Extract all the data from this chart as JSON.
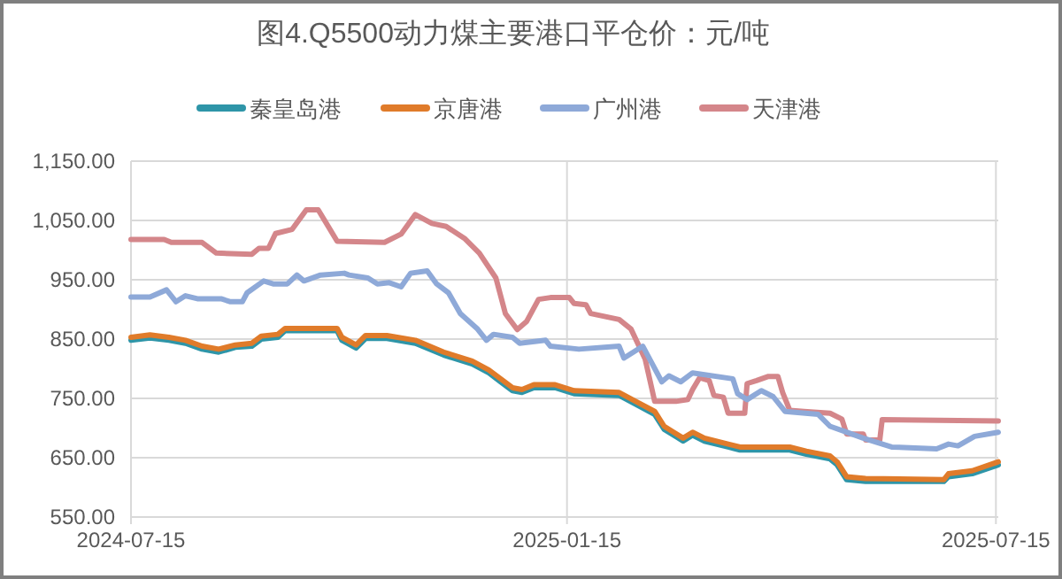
{
  "chart_data": {
    "type": "line",
    "title": "图4.Q5500动力煤主要港口平仓价：元/吨",
    "legend": "top",
    "grid": true,
    "line_style": "solid",
    "xlim": [
      "2024-07-15",
      "2025-07-16"
    ],
    "xticks": [
      "2024-07-15",
      "2025-01-15",
      "2025-07-15"
    ],
    "ylim": [
      550,
      1150
    ],
    "yticks": [
      {
        "value": 550,
        "label": "550.00"
      },
      {
        "value": 650,
        "label": "650.00"
      },
      {
        "value": 750,
        "label": "750.00"
      },
      {
        "value": 850,
        "label": "850.00"
      },
      {
        "value": 950,
        "label": "950.00"
      },
      {
        "value": 1050,
        "label": "1,050.00"
      },
      {
        "value": 1150,
        "label": "1,150.00"
      }
    ],
    "series": [
      {
        "name": "秦皇岛港",
        "color": "#2e95a8",
        "x": [
          "2024-07-15",
          "2024-07-23",
          "2024-07-31",
          "2024-08-07",
          "2024-08-14",
          "2024-08-21",
          "2024-08-28",
          "2024-09-04",
          "2024-09-08",
          "2024-09-15",
          "2024-09-18",
          "2024-10-10",
          "2024-10-12",
          "2024-10-18",
          "2024-10-22",
          "2024-10-31",
          "2024-11-12",
          "2024-11-24",
          "2024-12-06",
          "2024-12-13",
          "2024-12-18",
          "2024-12-23",
          "2024-12-27",
          "2025-01-01",
          "2025-01-10",
          "2025-01-18",
          "2025-02-06",
          "2025-02-13",
          "2025-02-21",
          "2025-02-25",
          "2025-03-05",
          "2025-03-09",
          "2025-03-14",
          "2025-03-24",
          "2025-03-29",
          "2025-04-19",
          "2025-04-26",
          "2025-05-06",
          "2025-05-09",
          "2025-05-13",
          "2025-05-21",
          "2025-06-23",
          "2025-06-25",
          "2025-07-05",
          "2025-07-16"
        ],
        "values": [
          848,
          852,
          848,
          843,
          833,
          828,
          836,
          838,
          850,
          853,
          864,
          864,
          848,
          835,
          851,
          851,
          843,
          823,
          808,
          793,
          778,
          763,
          760,
          768,
          768,
          758,
          755,
          740,
          723,
          698,
          678,
          688,
          678,
          668,
          663,
          663,
          656,
          648,
          638,
          613,
          610,
          610,
          618,
          623,
          638
        ]
      },
      {
        "name": "京唐港",
        "color": "#e07b2a",
        "x": [
          "2024-07-15",
          "2024-07-23",
          "2024-07-31",
          "2024-08-07",
          "2024-08-14",
          "2024-08-21",
          "2024-08-28",
          "2024-09-04",
          "2024-09-08",
          "2024-09-15",
          "2024-09-18",
          "2024-10-10",
          "2024-10-12",
          "2024-10-18",
          "2024-10-22",
          "2024-10-31",
          "2024-11-12",
          "2024-11-24",
          "2024-12-06",
          "2024-12-13",
          "2024-12-18",
          "2024-12-23",
          "2024-12-27",
          "2025-01-01",
          "2025-01-10",
          "2025-01-18",
          "2025-02-06",
          "2025-02-13",
          "2025-02-21",
          "2025-02-25",
          "2025-03-05",
          "2025-03-09",
          "2025-03-14",
          "2025-03-24",
          "2025-03-29",
          "2025-04-19",
          "2025-04-26",
          "2025-05-06",
          "2025-05-09",
          "2025-05-13",
          "2025-05-21",
          "2025-06-23",
          "2025-06-25",
          "2025-07-05",
          "2025-07-16"
        ],
        "values": [
          853,
          857,
          853,
          848,
          838,
          833,
          840,
          843,
          855,
          858,
          868,
          868,
          853,
          840,
          856,
          856,
          848,
          828,
          813,
          798,
          783,
          768,
          765,
          773,
          773,
          763,
          760,
          745,
          728,
          703,
          683,
          693,
          683,
          673,
          668,
          668,
          661,
          653,
          643,
          618,
          615,
          613,
          623,
          628,
          643
        ]
      },
      {
        "name": "广州港",
        "color": "#8ea9d8",
        "x": [
          "2024-07-15",
          "2024-07-23",
          "2024-07-30",
          "2024-08-03",
          "2024-08-07",
          "2024-08-12",
          "2024-08-22",
          "2024-08-26",
          "2024-08-31",
          "2024-09-02",
          "2024-09-09",
          "2024-09-13",
          "2024-09-19",
          "2024-09-23",
          "2024-09-26",
          "2024-10-03",
          "2024-10-13",
          "2024-10-15",
          "2024-10-23",
          "2024-10-27",
          "2024-11-01",
          "2024-11-06",
          "2024-11-10",
          "2024-11-17",
          "2024-11-21",
          "2024-11-26",
          "2024-12-01",
          "2024-12-08",
          "2024-12-12",
          "2024-12-15",
          "2024-12-23",
          "2024-12-26",
          "2025-01-06",
          "2025-01-08",
          "2025-01-20",
          "2025-02-06",
          "2025-02-08",
          "2025-02-16",
          "2025-02-20",
          "2025-02-24",
          "2025-02-27",
          "2025-03-04",
          "2025-03-09",
          "2025-03-26",
          "2025-03-28",
          "2025-04-01",
          "2025-04-07",
          "2025-04-12",
          "2025-04-17",
          "2025-05-01",
          "2025-05-06",
          "2025-05-13",
          "2025-05-20",
          "2025-06-01",
          "2025-06-20",
          "2025-06-25",
          "2025-06-29",
          "2025-07-06",
          "2025-07-16"
        ],
        "values": [
          921,
          921,
          933,
          913,
          923,
          918,
          918,
          913,
          913,
          928,
          948,
          943,
          943,
          958,
          948,
          958,
          961,
          958,
          953,
          943,
          945,
          938,
          961,
          965,
          943,
          928,
          893,
          868,
          848,
          858,
          853,
          843,
          848,
          838,
          833,
          838,
          818,
          838,
          808,
          778,
          788,
          778,
          793,
          783,
          758,
          748,
          763,
          753,
          728,
          723,
          703,
          693,
          683,
          668,
          665,
          673,
          670,
          686,
          693
        ]
      },
      {
        "name": "天津港",
        "color": "#d4868a",
        "x": [
          "2024-07-15",
          "2024-07-29",
          "2024-08-01",
          "2024-08-14",
          "2024-08-20",
          "2024-09-04",
          "2024-09-07",
          "2024-09-11",
          "2024-09-14",
          "2024-09-21",
          "2024-09-27",
          "2024-10-02",
          "2024-10-10",
          "2024-10-30",
          "2024-11-06",
          "2024-11-12",
          "2024-11-19",
          "2024-11-25",
          "2024-12-03",
          "2024-12-09",
          "2024-12-16",
          "2024-12-20",
          "2024-12-25",
          "2024-12-29",
          "2025-01-03",
          "2025-01-08",
          "2025-01-16",
          "2025-01-18",
          "2025-01-23",
          "2025-01-25",
          "2025-02-06",
          "2025-02-11",
          "2025-02-17",
          "2025-02-21",
          "2025-03-02",
          "2025-03-07",
          "2025-03-09",
          "2025-03-12",
          "2025-03-16",
          "2025-03-18",
          "2025-03-22",
          "2025-03-24",
          "2025-03-31",
          "2025-04-01",
          "2025-04-05",
          "2025-04-10",
          "2025-04-14",
          "2025-04-16",
          "2025-04-19",
          "2025-04-25",
          "2025-05-06",
          "2025-05-11",
          "2025-05-13",
          "2025-05-20",
          "2025-05-21",
          "2025-05-27",
          "2025-05-28",
          "2025-07-16"
        ],
        "values": [
          1018,
          1018,
          1013,
          1013,
          995,
          993,
          1003,
          1003,
          1028,
          1035,
          1068,
          1068,
          1015,
          1013,
          1027,
          1060,
          1045,
          1040,
          1019,
          995,
          953,
          893,
          866,
          880,
          917,
          920,
          920,
          910,
          908,
          893,
          883,
          867,
          816,
          745,
          745,
          748,
          765,
          785,
          780,
          755,
          752,
          725,
          725,
          775,
          780,
          787,
          787,
          760,
          730,
          728,
          725,
          715,
          690,
          690,
          680,
          680,
          714,
          712
        ]
      }
    ]
  }
}
